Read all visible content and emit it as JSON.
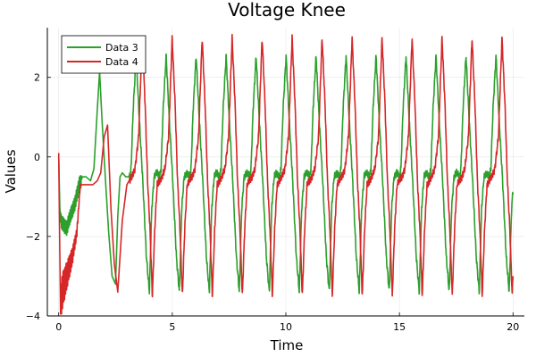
{
  "chart_data": {
    "type": "line",
    "title": "Voltage Knee",
    "xlabel": "Time",
    "ylabel": "Values",
    "xlim": [
      -0.5,
      20.5
    ],
    "ylim": [
      -4,
      3.25
    ],
    "xticks": [
      0,
      5,
      10,
      15,
      20
    ],
    "xtick_labels": [
      "0",
      "5",
      "10",
      "15",
      "20"
    ],
    "yticks": [
      -4,
      -2,
      0,
      2
    ],
    "ytick_labels": [
      "−4",
      "−2",
      "0",
      "2"
    ],
    "grid": true,
    "legend_position": "top-left",
    "colors": {
      "Data 3": "#2ca02c",
      "Data 4": "#d62728"
    },
    "period": 1.32,
    "cycle_start": 1.8,
    "series": [
      {
        "name": "Data 3",
        "shape": {
          "x": [
            0,
            0.05,
            0.1,
            0.2,
            0.35,
            0.5,
            0.7,
            0.9,
            1.05,
            1.2,
            1.4,
            1.55,
            1.7,
            1.8,
            1.9,
            2.05,
            2.2,
            2.35,
            2.5,
            2.6,
            2.7,
            2.8,
            2.95,
            3.1
          ],
          "y": [
            0.0,
            -1.3,
            -1.6,
            -1.7,
            -1.8,
            -1.5,
            -1.2,
            -0.7,
            -0.5,
            -0.5,
            -0.6,
            -0.3,
            1.2,
            2.15,
            1.0,
            -0.5,
            -1.9,
            -3.0,
            -3.2,
            -1.5,
            -0.5,
            -0.4,
            -0.5,
            -0.5
          ]
        },
        "cycle": {
          "phase": [
            0.0,
            0.05,
            0.12,
            0.22,
            0.32,
            0.44,
            0.56,
            0.66,
            0.74,
            0.82,
            0.9,
            0.96,
            1.0
          ],
          "y": [
            -0.5,
            -0.3,
            1.2,
            2.55,
            1.0,
            -0.6,
            -2.5,
            -3.4,
            -1.3,
            -0.5,
            -0.4,
            -0.45,
            -0.5
          ]
        }
      },
      {
        "name": "Data 4",
        "shape": {
          "x": [
            0,
            0.04,
            0.08,
            0.15,
            0.25,
            0.4,
            0.6,
            0.8,
            0.95,
            1.1,
            1.3,
            1.5,
            1.7,
            1.85,
            2.0,
            2.15,
            2.3,
            2.45,
            2.6,
            2.8,
            3.0,
            3.1
          ],
          "y": [
            0.1,
            -2.0,
            -3.8,
            -3.4,
            -3.2,
            -2.9,
            -2.5,
            -1.9,
            -0.7,
            -0.7,
            -0.7,
            -0.7,
            -0.6,
            -0.4,
            0.5,
            0.8,
            -1.3,
            -2.7,
            -3.4,
            -1.6,
            -0.7,
            -0.6
          ]
        },
        "cycle": {
          "phase": [
            0.0,
            0.08,
            0.18,
            0.3,
            0.42,
            0.52,
            0.6,
            0.68,
            0.76,
            0.84,
            0.92,
            1.0
          ],
          "y": [
            -0.6,
            -0.5,
            -0.3,
            0.5,
            3.0,
            1.3,
            -0.6,
            -1.8,
            -3.5,
            -1.8,
            -0.7,
            -0.6
          ]
        }
      }
    ]
  }
}
